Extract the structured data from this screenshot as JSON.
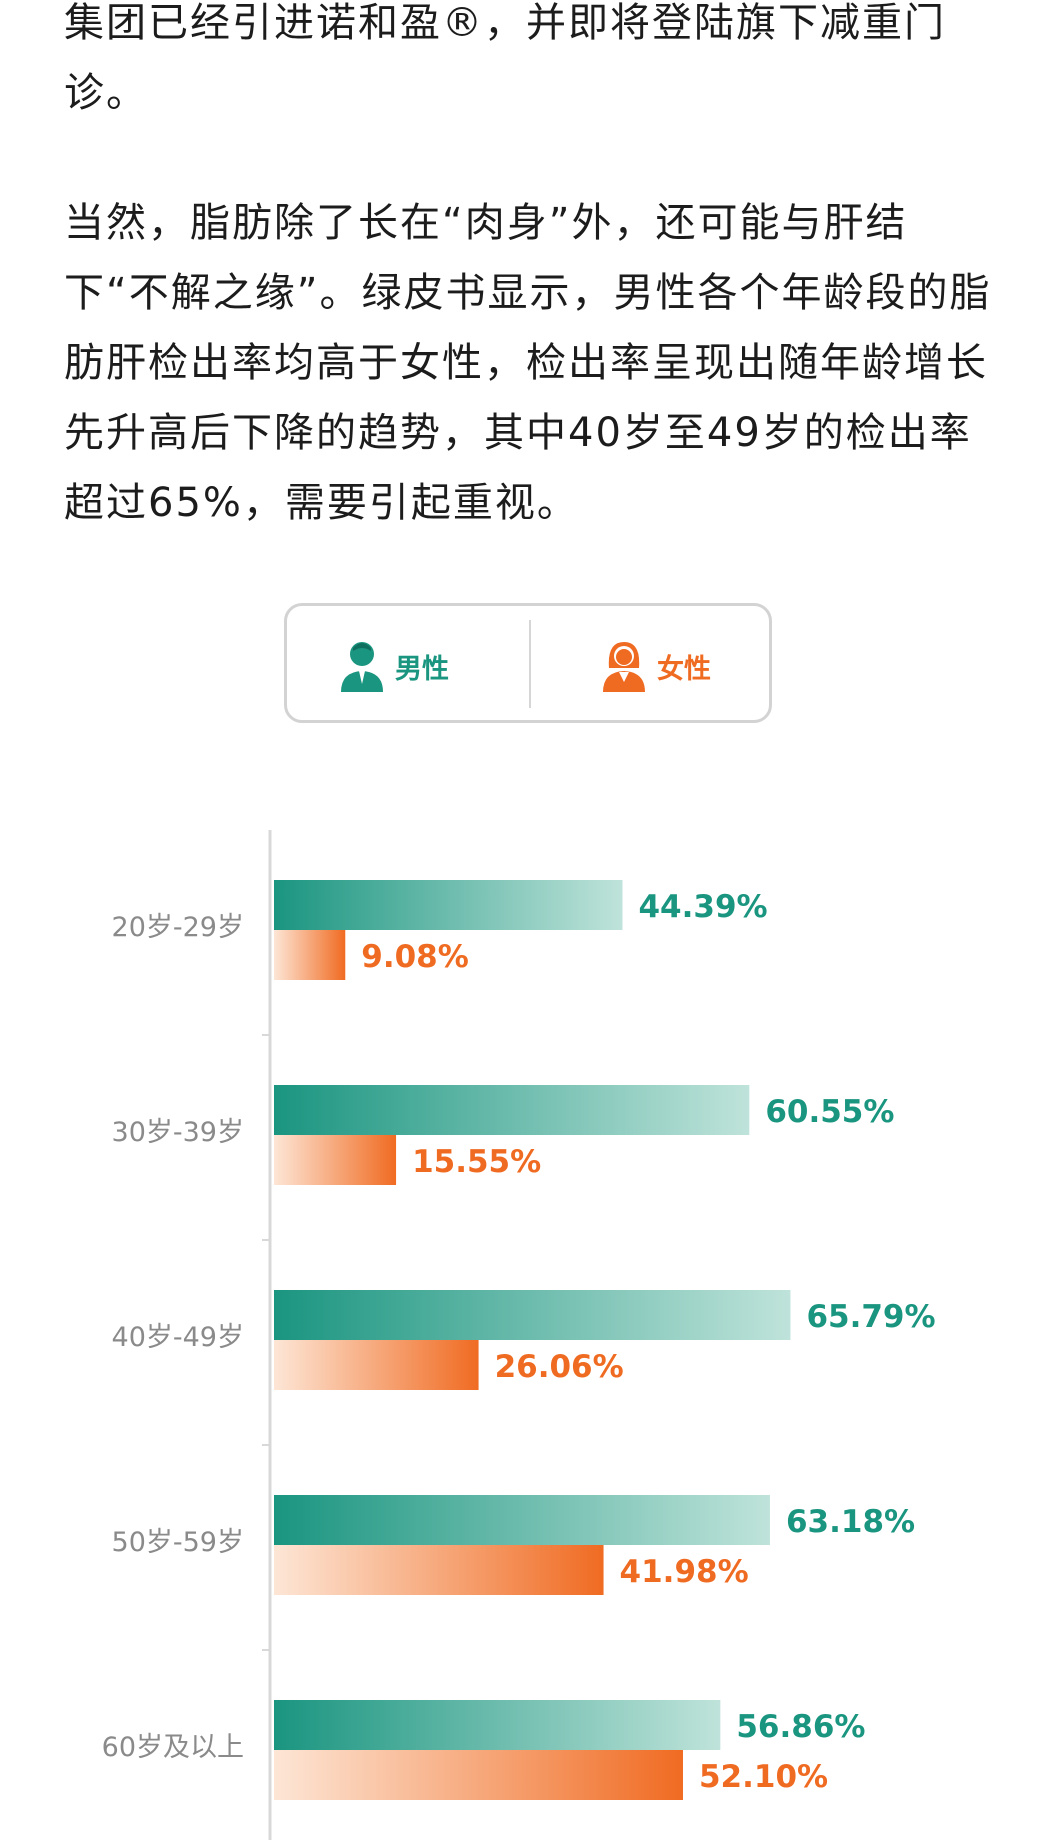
{
  "article": {
    "paragraph1": "集团已经引进诺和盈®，并即将登陆旗下减重门诊。",
    "paragraph2": "当然，脂肪除了长在“肉身”外，还可能与肝结下“不解之缘”。绿皮书显示，男性各个年龄段的脂肪肝检出率均高于女性，检出率呈现出随年龄增长先升高后下降的趋势，其中40岁至49岁的检出率超过65%，需要引起重视。"
  },
  "legend": {
    "male_label": "男性",
    "female_label": "女性",
    "male_icon": "male-person-icon",
    "female_icon": "female-person-icon"
  },
  "colors": {
    "male": "#1a9580",
    "male_light": "#bfe3da",
    "female": "#f06b22",
    "female_light": "#fde6d6",
    "axis": "#d8d8d8",
    "category_text": "#8a8a8a"
  },
  "chart_data": {
    "type": "bar",
    "orientation": "horizontal",
    "categories": [
      "20岁-29岁",
      "30岁-39岁",
      "40岁-49岁",
      "50岁-59岁",
      "60岁及以上"
    ],
    "series": [
      {
        "name": "男性",
        "values": [
          44.39,
          60.55,
          65.79,
          63.18,
          56.86
        ],
        "labels": [
          "44.39%",
          "60.55%",
          "65.79%",
          "63.18%",
          "56.86%"
        ]
      },
      {
        "name": "女性",
        "values": [
          9.08,
          15.55,
          26.06,
          41.98,
          52.1
        ],
        "labels": [
          "9.08%",
          "15.55%",
          "26.06%",
          "41.98%",
          "52.10%"
        ]
      }
    ],
    "title": "",
    "xlabel": "",
    "ylabel": "",
    "xlim": [
      0,
      100
    ],
    "grid": false,
    "legend_position": "top"
  }
}
